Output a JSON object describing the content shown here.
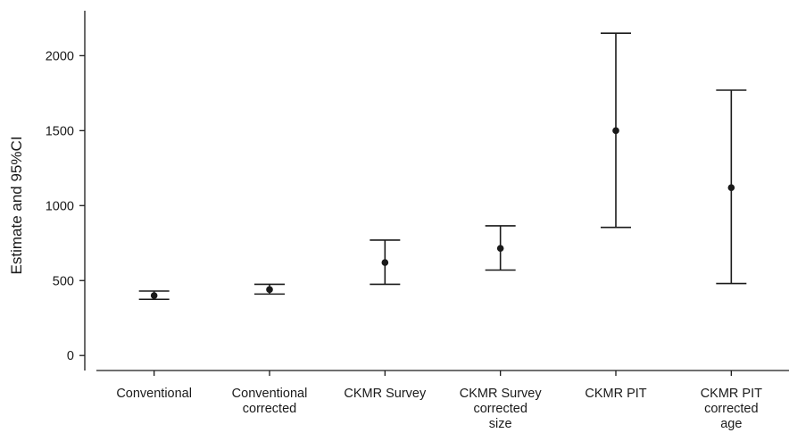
{
  "chart_data": {
    "type": "scatter",
    "subtype": "point-estimate-with-error-bars",
    "title": "",
    "xlabel": "",
    "ylabel": "Estimate and 95%CI",
    "ylim": [
      -100,
      2300
    ],
    "yticks": [
      0,
      500,
      1000,
      1500,
      2000
    ],
    "grid": false,
    "legend": "none",
    "categories": [
      [
        "Conventional"
      ],
      [
        "Conventional",
        "corrected"
      ],
      [
        "CKMR Survey"
      ],
      [
        "CKMR Survey",
        "corrected",
        "size"
      ],
      [
        "CKMR PIT"
      ],
      [
        "CKMR PIT",
        "corrected",
        "age"
      ]
    ],
    "series": [
      {
        "estimate": [
          400,
          440,
          620,
          715,
          1500,
          1120
        ],
        "lower": [
          375,
          410,
          475,
          570,
          855,
          480
        ],
        "upper": [
          430,
          475,
          770,
          865,
          2150,
          1770
        ]
      }
    ],
    "colors": {
      "marks": "#1a1a1a",
      "axis": "#1a1a1a"
    }
  }
}
